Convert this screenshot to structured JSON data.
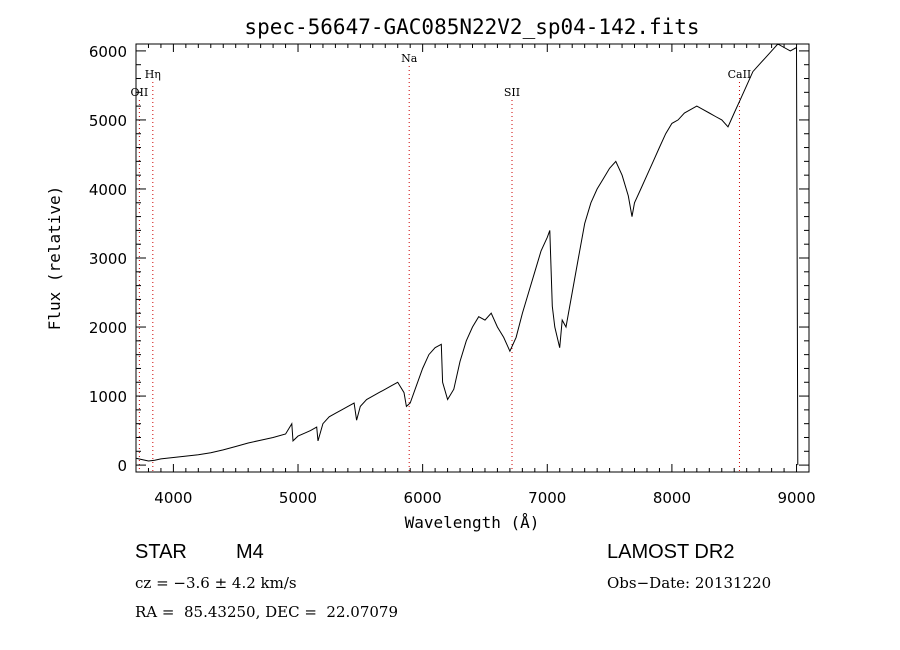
{
  "chart_data": {
    "type": "line",
    "title": "spec-56647-GAC085N22V2_sp04-142.fits",
    "xlabel": "Wavelength (Å)",
    "ylabel": "Flux (relative)",
    "xlim": [
      3700,
      9100
    ],
    "ylim": [
      -100,
      6100
    ],
    "x_ticks": [
      4000,
      5000,
      6000,
      7000,
      8000,
      9000
    ],
    "y_ticks": [
      0,
      1000,
      2000,
      3000,
      4000,
      5000,
      6000
    ],
    "grid": false,
    "line_color": "#000000",
    "marker_color": "#cc0000",
    "series": [
      {
        "x": [
          3700,
          3750,
          3800,
          3850,
          3900,
          4000,
          4100,
          4200,
          4300,
          4400,
          4500,
          4600,
          4700,
          4800,
          4900,
          4950,
          4960,
          5000,
          5050,
          5100,
          5150,
          5160,
          5200,
          5250,
          5300,
          5350,
          5400,
          5450,
          5470,
          5500,
          5550,
          5600,
          5650,
          5700,
          5750,
          5800,
          5850,
          5870,
          5900,
          5950,
          6000,
          6050,
          6100,
          6150,
          6160,
          6200,
          6250,
          6300,
          6350,
          6400,
          6450,
          6500,
          6550,
          6600,
          6650,
          6700,
          6750,
          6800,
          6850,
          6900,
          6950,
          7000,
          7020,
          7040,
          7060,
          7100,
          7120,
          7150,
          7200,
          7250,
          7300,
          7350,
          7400,
          7450,
          7500,
          7550,
          7600,
          7650,
          7680,
          7700,
          7750,
          7800,
          7850,
          7900,
          7950,
          8000,
          8050,
          8100,
          8150,
          8200,
          8250,
          8300,
          8350,
          8400,
          8450,
          8500,
          8550,
          8600,
          8650,
          8700,
          8750,
          8800,
          8850,
          8900,
          8950,
          9000,
          9010
        ],
        "y": [
          100,
          80,
          60,
          70,
          90,
          110,
          130,
          150,
          180,
          220,
          270,
          320,
          360,
          400,
          450,
          600,
          350,
          420,
          460,
          500,
          550,
          350,
          600,
          700,
          750,
          800,
          850,
          900,
          650,
          850,
          950,
          1000,
          1050,
          1100,
          1150,
          1200,
          1050,
          850,
          900,
          1150,
          1400,
          1600,
          1700,
          1750,
          1200,
          950,
          1100,
          1500,
          1800,
          2000,
          2150,
          2100,
          2200,
          2000,
          1850,
          1650,
          1850,
          2200,
          2500,
          2800,
          3100,
          3300,
          3400,
          2300,
          2000,
          1700,
          2100,
          2000,
          2500,
          3000,
          3500,
          3800,
          4000,
          4150,
          4300,
          4400,
          4200,
          3900,
          3600,
          3800,
          4000,
          4200,
          4400,
          4600,
          4800,
          4950,
          5000,
          5100,
          5150,
          5200,
          5150,
          5100,
          5050,
          5000,
          4900,
          5100,
          5300,
          5500,
          5700,
          5800,
          5900,
          6000,
          6100,
          6050,
          6000,
          6050,
          0
        ]
      }
    ],
    "lines": [
      {
        "label": "OII",
        "x": 3727,
        "row": "low"
      },
      {
        "label": "Hη",
        "x": 3835,
        "row": "mid"
      },
      {
        "label": "Na",
        "x": 5892,
        "row": "high"
      },
      {
        "label": "SII",
        "x": 6717,
        "row": "low"
      },
      {
        "label": "CaII",
        "x": 8542,
        "row": "mid"
      }
    ]
  },
  "info": {
    "object_type": "STAR",
    "subclass": "M4",
    "survey": "LAMOST DR2",
    "cz": "cz = −3.6 ± 4.2 km/s",
    "obs_date": "Obs−Date: 20131220",
    "coords": "RA =  85.43250, DEC =  22.07079"
  }
}
